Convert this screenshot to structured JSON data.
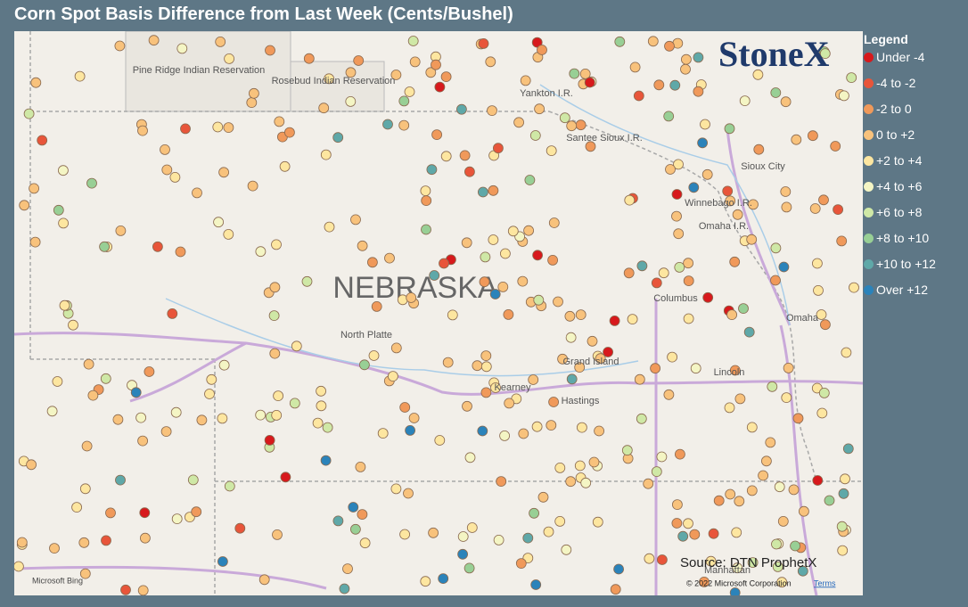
{
  "title": "Corn Spot Basis Difference from Last Week (Cents/Bushel)",
  "legend": {
    "title": "Legend",
    "items": [
      {
        "label": "Under -4",
        "color": "#d7191c"
      },
      {
        "label": "-4 to -2",
        "color": "#e8553a"
      },
      {
        "label": "-2 to 0",
        "color": "#f0995a"
      },
      {
        "label": "0 to +2",
        "color": "#f8c27c"
      },
      {
        "label": "+2 to +4",
        "color": "#fde6a0"
      },
      {
        "label": "+4 to +6",
        "color": "#f4f5c4"
      },
      {
        "label": "+6 to +8",
        "color": "#cfe8a6"
      },
      {
        "label": "+8 to +10",
        "color": "#98cf95"
      },
      {
        "label": "+10 to +12",
        "color": "#5fa8a8"
      },
      {
        "label": "Over +12",
        "color": "#2b83ba"
      }
    ]
  },
  "map": {
    "state": "NEBRASKA",
    "labels": [
      "Pine Ridge Indian Reservation",
      "Rosebud Indian Reservation",
      "Yankton I.R.",
      "Santee Sioux I.R.",
      "Sioux City",
      "Winnebago I.R.",
      "Omaha I.R.",
      "Columbus",
      "Omaha",
      "North Platte",
      "Grand Island",
      "Kearney",
      "Hastings",
      "Lincoln",
      "Manhattan"
    ]
  },
  "logo": "StoneX",
  "source": "Source: DTN ProphetX",
  "copyright": "© 2022 Microsoft Corporation",
  "terms": "Terms",
  "bing": "Microsoft Bing"
}
